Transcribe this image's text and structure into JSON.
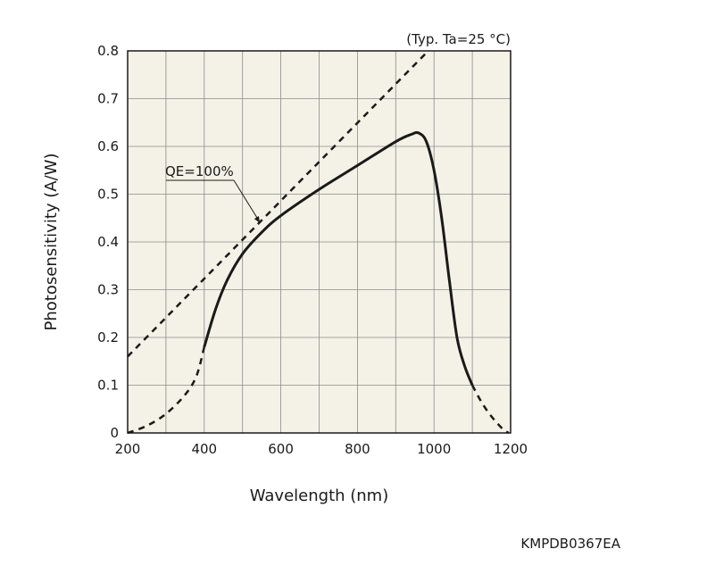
{
  "chart_data": {
    "type": "line",
    "title": "",
    "condition_note": "(Typ. Ta=25 °C)",
    "xlabel": "Wavelength (nm)",
    "ylabel": "Photosensitivity (A/W)",
    "xlim": [
      200,
      1200
    ],
    "ylim": [
      0,
      0.8
    ],
    "x_ticks": [
      200,
      400,
      600,
      800,
      1000,
      1200
    ],
    "x_tick_labels": [
      "200",
      "400",
      "600",
      "800",
      "1000",
      "1200"
    ],
    "x_minor_step": 100,
    "y_ticks": [
      0,
      0.1,
      0.2,
      0.3,
      0.4,
      0.5,
      0.6,
      0.7,
      0.8
    ],
    "y_tick_labels": [
      "0",
      "0.1",
      "0.2",
      "0.3",
      "0.4",
      "0.5",
      "0.6",
      "0.7",
      "0.8"
    ],
    "grid": true,
    "plot_background": "#f4f1e6",
    "grid_color": "#8c8c8c",
    "line_color": "#1a1a1a",
    "annotation": {
      "text": "QE=100%",
      "points_to": {
        "x": 545,
        "y": 0.44
      }
    },
    "series": [
      {
        "style": "dashed",
        "x": [
          200,
          985
        ],
        "y": [
          0.16,
          0.8
        ]
      },
      {
        "style": "dashed",
        "x": [
          200,
          250,
          300,
          350,
          380,
          400
        ],
        "y": [
          0.0,
          0.015,
          0.04,
          0.08,
          0.12,
          0.18
        ]
      },
      {
        "style": "solid",
        "x": [
          400,
          430,
          460,
          500,
          550,
          600,
          700,
          800,
          900,
          940,
          960,
          980,
          1000,
          1020,
          1040,
          1060,
          1080,
          1100
        ],
        "y": [
          0.18,
          0.26,
          0.32,
          0.375,
          0.42,
          0.455,
          0.51,
          0.56,
          0.61,
          0.625,
          0.628,
          0.61,
          0.55,
          0.45,
          0.32,
          0.2,
          0.14,
          0.1
        ]
      },
      {
        "style": "dashed",
        "x": [
          1100,
          1120,
          1140,
          1160,
          1180,
          1195
        ],
        "y": [
          0.1,
          0.07,
          0.045,
          0.025,
          0.008,
          0.0
        ]
      }
    ]
  },
  "footer": {
    "code": "KMPDB0367EA"
  }
}
